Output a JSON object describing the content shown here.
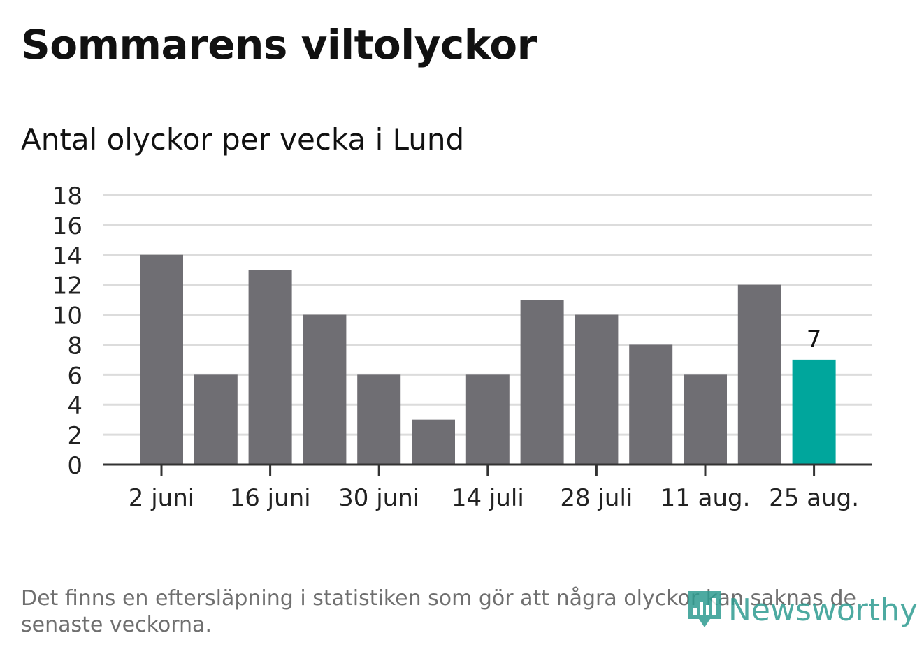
{
  "title": "Sommarens viltolyckor",
  "subtitle": "Antal olyckor per vecka i Lund",
  "footnote": "Det finns en eftersläpning i statistiken som gör att några olyckor kan saknas de senaste veckorna.",
  "brand": {
    "name": "Newsworthy",
    "icon": "newsworthy-logo-icon",
    "color": "#2e9c91"
  },
  "colors": {
    "bar": "#6f6e73",
    "highlight": "#00a69c",
    "grid": "#dcdcdc",
    "axis": "#333333",
    "text": "#222222"
  },
  "chart_data": {
    "type": "bar",
    "categories": [
      "2 juni",
      "",
      "16 juni",
      "",
      "30 juni",
      "",
      "14 juli",
      "",
      "28 juli",
      "",
      "11 aug.",
      "",
      "25 aug."
    ],
    "values": [
      14,
      6,
      13,
      10,
      6,
      3,
      6,
      11,
      10,
      8,
      6,
      12,
      7
    ],
    "highlight_index": 12,
    "highlight_label": "7",
    "ylim": [
      0,
      18
    ],
    "yticks": [
      0,
      2,
      4,
      6,
      8,
      10,
      12,
      14,
      16,
      18
    ],
    "grid": true,
    "xlabel": "",
    "ylabel": ""
  }
}
